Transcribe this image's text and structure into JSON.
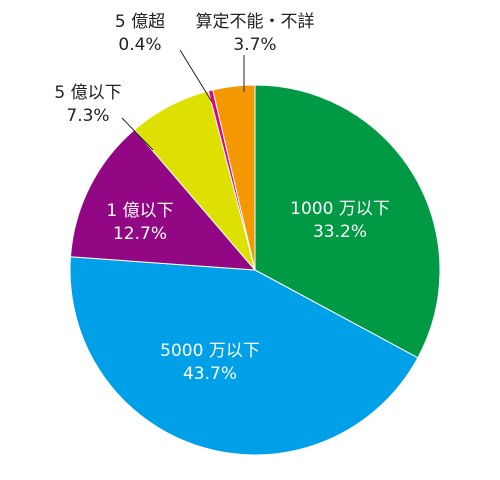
{
  "chart_data": {
    "type": "pie",
    "categories": [
      "1000 万以下",
      "5000 万以下",
      "1 億以下",
      "5 億以下",
      "5 億超",
      "算定不能・不詳"
    ],
    "values": [
      33.2,
      43.7,
      12.7,
      7.3,
      0.4,
      3.7
    ],
    "value_labels": [
      "33.2%",
      "43.7%",
      "12.7%",
      "7.3%",
      "0.4%",
      "3.7%"
    ],
    "colors": [
      "#009944",
      "#00a0e9",
      "#920783",
      "#dde000",
      "#e4007f",
      "#f39800"
    ]
  }
}
